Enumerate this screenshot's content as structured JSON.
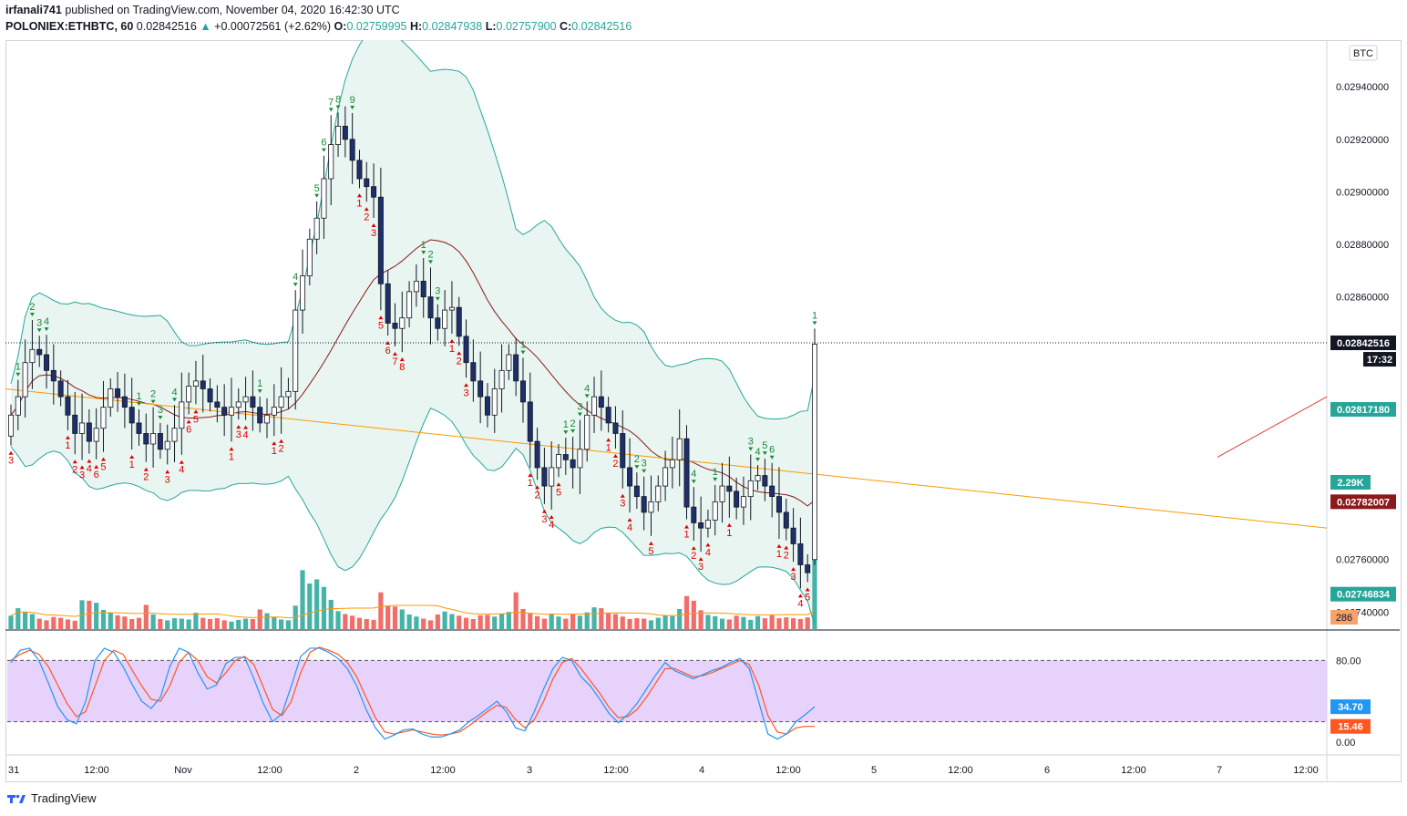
{
  "header": {
    "publisher_user": "irfanali741",
    "publisher_text": "published on TradingView.com, November 04, 2020 16:42:30 UTC",
    "symbol": "POLONIEX:ETHBTC, 60",
    "last": "0.02842516",
    "change": "+0.00072561 (+2.62%)",
    "o_label": "O:",
    "o": "0.02759995",
    "h_label": "H:",
    "h": "0.02847938",
    "l_label": "L:",
    "l": "0.02757900",
    "c_label": "C:",
    "c": "0.02842516"
  },
  "footer": {
    "brand": "TradingView"
  },
  "colors": {
    "up": "#26a69a",
    "down": "#ef5350",
    "candle_up": "#ffffff",
    "candle_down": "#1e2f6b",
    "bb_line": "#26a69a",
    "bb_fill": "#e8f5f1",
    "basis": "#8b1a1a",
    "trend": "#ff9800",
    "stoch_k": "#2196f3",
    "stoch_d": "#ff5722",
    "stoch_band": "#e1c7fb"
  },
  "chart_data": [
    {
      "type": "candlestick",
      "title": "POLONIEX:ETHBTC, 60",
      "currency_badge": "BTC",
      "x_ticks": [
        "31",
        "12:00",
        "Nov",
        "12:00",
        "2",
        "12:00",
        "3",
        "12:00",
        "4",
        "12:00",
        "5",
        "12:00",
        "6",
        "12:00",
        "7",
        "12:00"
      ],
      "y_ticks": [
        "0.02940000",
        "0.02920000",
        "0.02900000",
        "0.02880000",
        "0.02860000",
        "0.02760000",
        "0.02740000"
      ],
      "y_tick_values": [
        0.0294,
        0.0292,
        0.029,
        0.0288,
        0.0286,
        0.0276,
        0.0274
      ],
      "ylim": [
        0.02737,
        0.02955
      ],
      "price_tags": [
        {
          "value": 0.02842516,
          "label": "0.02842516",
          "bg": "#131722",
          "fg": "#ffffff"
        },
        {
          "value": 0.0281718,
          "label": "0.02817180",
          "bg": "#26a69a",
          "fg": "#ffffff"
        },
        {
          "value": 0.02782007,
          "label": "0.02782007",
          "bg": "#8b1a1a",
          "fg": "#ffffff"
        },
        {
          "value": 0.02746834,
          "label": "0.02746834",
          "bg": "#26a69a",
          "fg": "#ffffff"
        }
      ],
      "countdown": "17:32",
      "volume_tag_vol": "2.29K",
      "volume_tag_ma": "286",
      "close": [
        0.02815,
        0.02822,
        0.02835,
        0.0284,
        0.02838,
        0.02832,
        0.02828,
        0.02822,
        0.02815,
        0.02808,
        0.02812,
        0.02805,
        0.0281,
        0.02818,
        0.02825,
        0.02822,
        0.02818,
        0.02812,
        0.02808,
        0.02804,
        0.02808,
        0.02802,
        0.02805,
        0.0281,
        0.0282,
        0.02826,
        0.02828,
        0.02825,
        0.0282,
        0.02818,
        0.02815,
        0.02818,
        0.0282,
        0.02822,
        0.02818,
        0.02812,
        0.02815,
        0.02818,
        0.02822,
        0.02824,
        0.02855,
        0.02868,
        0.02882,
        0.0289,
        0.02905,
        0.02918,
        0.02925,
        0.0292,
        0.02912,
        0.02905,
        0.02902,
        0.02898,
        0.02865,
        0.0285,
        0.02848,
        0.02852,
        0.02862,
        0.02866,
        0.0286,
        0.02852,
        0.02848,
        0.02855,
        0.02856,
        0.02845,
        0.02835,
        0.02828,
        0.02822,
        0.02815,
        0.02825,
        0.02832,
        0.02838,
        0.02828,
        0.0282,
        0.02805,
        0.02795,
        0.02788,
        0.02795,
        0.028,
        0.02798,
        0.02795,
        0.02802,
        0.02815,
        0.02822,
        0.02818,
        0.02812,
        0.02808,
        0.02795,
        0.02788,
        0.02784,
        0.02778,
        0.02782,
        0.02788,
        0.02795,
        0.02798,
        0.02806,
        0.0278,
        0.02774,
        0.02772,
        0.02775,
        0.02782,
        0.02788,
        0.02786,
        0.0278,
        0.02784,
        0.0279,
        0.02792,
        0.02788,
        0.02784,
        0.02778,
        0.02772,
        0.02766,
        0.02758,
        0.02755,
        0.02842
      ],
      "volume": [
        320,
        500,
        410,
        360,
        250,
        210,
        290,
        270,
        230,
        200,
        690,
        680,
        630,
        460,
        390,
        330,
        300,
        240,
        270,
        580,
        350,
        240,
        210,
        260,
        250,
        230,
        390,
        270,
        240,
        260,
        210,
        180,
        220,
        250,
        240,
        470,
        380,
        290,
        230,
        210,
        560,
        1410,
        1090,
        1190,
        1010,
        700,
        430,
        360,
        320,
        270,
        240,
        220,
        880,
        550,
        540,
        470,
        350,
        300,
        250,
        210,
        350,
        420,
        360,
        320,
        270,
        240,
        330,
        340,
        300,
        370,
        410,
        880,
        480,
        380,
        310,
        250,
        370,
        300,
        250,
        350,
        320,
        400,
        520,
        500,
        380,
        360,
        300,
        240,
        260,
        250,
        210,
        270,
        330,
        310,
        480,
        790,
        680,
        450,
        340,
        310,
        250,
        230,
        320,
        290,
        220,
        310,
        260,
        330,
        260,
        280,
        260,
        240,
        280,
        2290
      ],
      "stoch_k": [
        78,
        90,
        92,
        80,
        58,
        35,
        22,
        18,
        40,
        80,
        92,
        88,
        74,
        56,
        40,
        33,
        44,
        74,
        92,
        88,
        68,
        52,
        56,
        77,
        83,
        83,
        62,
        38,
        20,
        28,
        55,
        84,
        92,
        92,
        88,
        82,
        72,
        55,
        32,
        14,
        3,
        7,
        12,
        13,
        8,
        5,
        5,
        8,
        12,
        20,
        26,
        33,
        40,
        30,
        14,
        11,
        30,
        52,
        72,
        83,
        80,
        64,
        55,
        42,
        28,
        19,
        27,
        38,
        52,
        66,
        78,
        70,
        66,
        62,
        66,
        70,
        73,
        78,
        82,
        72,
        40,
        8,
        3,
        8,
        20,
        27,
        34.7
      ],
      "stoch_d": [
        80,
        86,
        90,
        86,
        74,
        56,
        38,
        25,
        30,
        55,
        80,
        90,
        86,
        70,
        55,
        42,
        40,
        55,
        78,
        88,
        80,
        64,
        58,
        68,
        80,
        84,
        76,
        54,
        32,
        26,
        40,
        68,
        88,
        93,
        90,
        86,
        78,
        64,
        44,
        24,
        10,
        8,
        10,
        12,
        10,
        8,
        7,
        8,
        10,
        16,
        23,
        30,
        36,
        34,
        22,
        14,
        22,
        40,
        62,
        78,
        82,
        72,
        60,
        48,
        34,
        24,
        25,
        32,
        44,
        58,
        72,
        72,
        68,
        64,
        65,
        68,
        72,
        76,
        80,
        76,
        56,
        26,
        10,
        8,
        14,
        15.46,
        15.46
      ],
      "stoch_ticks": [
        "80.00",
        "0.00"
      ],
      "stoch_tick_values": [
        80,
        0
      ],
      "stoch_k_tag": "34.70",
      "stoch_d_tag": "15.46",
      "td_labels": [
        "1",
        "2",
        "3",
        "4",
        "5",
        "6",
        "7",
        "8",
        "9"
      ]
    }
  ]
}
